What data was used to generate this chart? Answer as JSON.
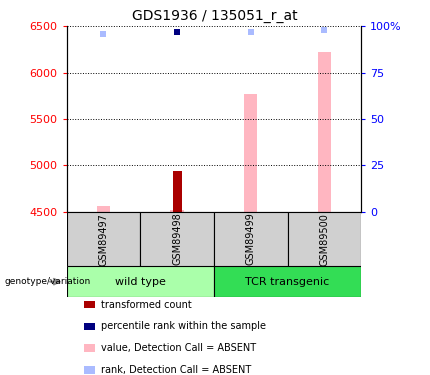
{
  "title": "GDS1936 / 135051_r_at",
  "samples": [
    "GSM89497",
    "GSM89498",
    "GSM89499",
    "GSM89500"
  ],
  "groups": [
    {
      "label": "wild type",
      "color": "#AAFFAA",
      "samples": [
        0,
        1
      ]
    },
    {
      "label": "TCR transgenic",
      "color": "#33DD55",
      "samples": [
        2,
        3
      ]
    }
  ],
  "ylim_left": [
    4500,
    6500
  ],
  "ylim_right": [
    0,
    100
  ],
  "yticks_left": [
    4500,
    5000,
    5500,
    6000,
    6500
  ],
  "yticks_right": [
    0,
    25,
    50,
    75,
    100
  ],
  "ytick_labels_right": [
    "0",
    "25",
    "50",
    "75",
    "100%"
  ],
  "pink_bar_values": [
    4560,
    4515,
    5770,
    6220
  ],
  "dark_red_bar_value": 4940,
  "dark_red_bar_index": 1,
  "blue_dark_square_index": 1,
  "blue_dark_square_pct": 97,
  "light_blue_pct_values": [
    96,
    97,
    97,
    98
  ],
  "pink_bar_color": "#FFB6C1",
  "dark_red_color": "#AA0000",
  "blue_dark_color": "#00007F",
  "blue_light_color": "#AABBFF",
  "legend_items": [
    {
      "label": "transformed count",
      "color": "#AA0000"
    },
    {
      "label": "percentile rank within the sample",
      "color": "#00007F"
    },
    {
      "label": "value, Detection Call = ABSENT",
      "color": "#FFB6C1"
    },
    {
      "label": "rank, Detection Call = ABSENT",
      "color": "#AABBFF"
    }
  ],
  "genotype_label": "genotype/variation",
  "pink_bar_width": 0.18,
  "dark_red_bar_width": 0.12
}
